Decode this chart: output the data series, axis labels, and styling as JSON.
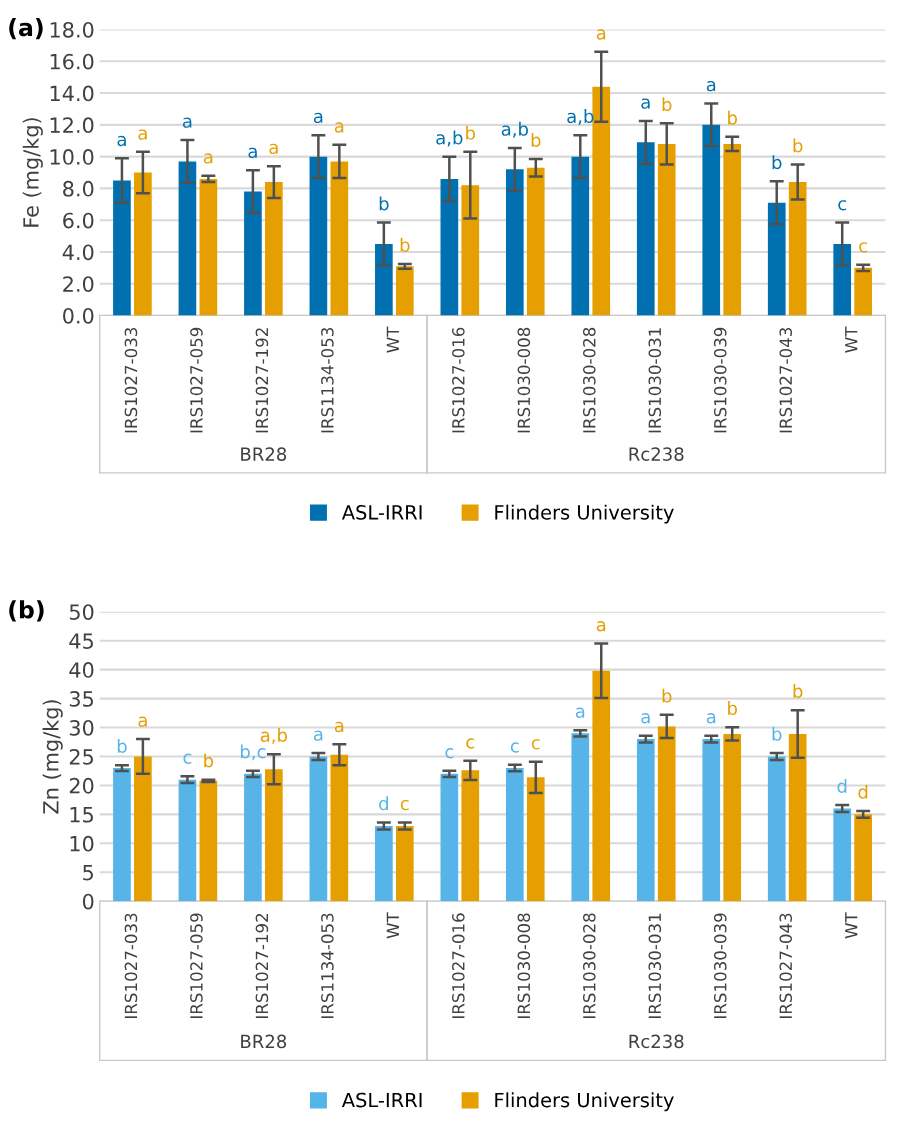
{
  "chart_data": [
    {
      "type": "bar",
      "title": "(a)",
      "ylabel": "Fe (mg/kg)",
      "categories": [
        "IRS1027-033",
        "IRS1027-059",
        "IRS1027-192",
        "IRS1134-053",
        "WT",
        "IRS1027-016",
        "IRS1030-008",
        "IRS1030-028",
        "IRS1030-031",
        "IRS1030-039",
        "IRS1027-043",
        "WT"
      ],
      "series": [
        {
          "name": "ASL-IRRI",
          "color": "#0070b0",
          "values": [
            8.5,
            9.7,
            7.8,
            10.0,
            4.5,
            8.6,
            9.2,
            10.0,
            10.9,
            12.0,
            7.1,
            4.5
          ],
          "errors": [
            1.4,
            1.35,
            1.35,
            1.35,
            1.35,
            1.4,
            1.35,
            1.35,
            1.35,
            1.35,
            1.35,
            1.35
          ],
          "value_labels": [
            "a",
            "a",
            "a",
            "a",
            "b",
            "a,b",
            "a,b",
            "a,b",
            "a",
            "a",
            "b",
            "c"
          ]
        },
        {
          "name": "Flinders University",
          "color": "#e69f00",
          "values": [
            9.0,
            8.6,
            8.4,
            9.7,
            3.1,
            8.2,
            9.3,
            14.4,
            10.8,
            10.8,
            8.4,
            3.0
          ],
          "errors": [
            1.3,
            0.2,
            1.0,
            1.05,
            0.15,
            2.1,
            0.55,
            2.2,
            1.3,
            0.45,
            1.1,
            0.2
          ],
          "value_labels": [
            "a",
            "a",
            "a",
            "a",
            "b",
            "b",
            "b",
            "a",
            "b",
            "b",
            "b",
            "c"
          ]
        }
      ],
      "annotations": [
        "BR28",
        "Rc238"
      ],
      "ylim": [
        0,
        18
      ],
      "yticks": [
        {
          "value": 0,
          "label": "0.0"
        },
        {
          "value": 2,
          "label": "2.0"
        },
        {
          "value": 4,
          "label": "4.0"
        },
        {
          "value": 6,
          "label": "6.0"
        },
        {
          "value": 8,
          "label": "8.0"
        },
        {
          "value": 10,
          "label": "10.0"
        },
        {
          "value": 12,
          "label": "12.0"
        },
        {
          "value": 14,
          "label": "14.0"
        },
        {
          "value": 16,
          "label": "16.0"
        },
        {
          "value": 18,
          "label": "18.0"
        }
      ],
      "grid": "y",
      "legend": "bottom"
    },
    {
      "type": "bar",
      "title": "(b)",
      "ylabel": "Zn (mg/kg)",
      "categories": [
        "IRS1027-033",
        "IRS1027-059",
        "IRS1027-192",
        "IRS1134-053",
        "WT",
        "IRS1027-016",
        "IRS1030-008",
        "IRS1030-028",
        "IRS1030-031",
        "IRS1030-039",
        "IRS1027-043",
        "WT"
      ],
      "series": [
        {
          "name": "ASL-IRRI",
          "color": "#56b4e9",
          "values": [
            23,
            21,
            22,
            25,
            13,
            22,
            23,
            29,
            28,
            28,
            25,
            16
          ],
          "errors": [
            0.5,
            0.6,
            0.55,
            0.6,
            0.6,
            0.55,
            0.55,
            0.55,
            0.6,
            0.6,
            0.6,
            0.6
          ],
          "value_labels": [
            "b",
            "c",
            "b,c",
            "a",
            "d",
            "c",
            "c",
            "a",
            "a",
            "a",
            "b",
            "d"
          ]
        },
        {
          "name": "Flinders University",
          "color": "#e69f00",
          "values": [
            25,
            20.8,
            22.8,
            25.3,
            13,
            22.6,
            21.4,
            39.8,
            30.2,
            28.9,
            28.9,
            15
          ],
          "errors": [
            3.0,
            0.2,
            2.6,
            1.8,
            0.6,
            1.65,
            2.7,
            4.7,
            2.0,
            1.15,
            4.1,
            0.6
          ],
          "value_labels": [
            "a",
            "b",
            "a,b",
            "a",
            "c",
            "c",
            "c",
            "a",
            "b",
            "b",
            "b",
            "d"
          ]
        }
      ],
      "annotations": [
        "BR28",
        "Rc238"
      ],
      "ylim": [
        0,
        50
      ],
      "yticks": [
        0,
        5,
        10,
        15,
        20,
        25,
        30,
        35,
        40,
        45,
        50
      ],
      "grid": "y",
      "legend": "bottom"
    }
  ]
}
